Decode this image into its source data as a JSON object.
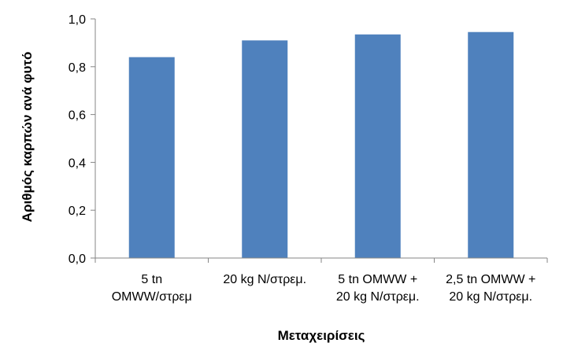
{
  "chart_data": {
    "type": "bar",
    "categories": [
      [
        "5 tn",
        "OMWW/στρεμ"
      ],
      [
        "20 kg N/στρεμ."
      ],
      [
        "5 tn OMWW +",
        "20 kg N/στρεμ."
      ],
      [
        "2,5 tn OMWW +",
        "20 kg N/στρεμ."
      ]
    ],
    "values": [
      0.84,
      0.91,
      0.935,
      0.945
    ],
    "xlabel": "Μεταχειρίσεις",
    "ylabel": "Αριθμός καρπών ανά φυτό",
    "ylim": [
      0,
      1.0
    ],
    "yticks": [
      0.0,
      0.2,
      0.4,
      0.6,
      0.8,
      1.0
    ],
    "ytick_labels": [
      "0,0",
      "0,2",
      "0,4",
      "0,6",
      "0,8",
      "1,0"
    ],
    "bar_color": "#4f81bd",
    "axis_color": "#868686",
    "grid": false,
    "legend": "none"
  }
}
